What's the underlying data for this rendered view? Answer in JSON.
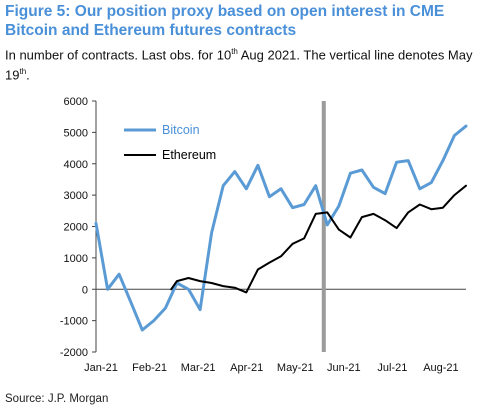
{
  "chart_data": {
    "type": "line",
    "title_prefix": "Figure 5: ",
    "title": "Our position proxy based on open interest in CME Bitcoin and Ethereum futures contracts",
    "subtitle_a": "In number of contracts. Last obs. for 10",
    "subtitle_sup_a": "th",
    "subtitle_b": " Aug 2021. The vertical line denotes May 19",
    "subtitle_sup_b": "th",
    "subtitle_c": ".",
    "source": "Source: J.P. Morgan",
    "x_tick_labels": [
      "Jan-21",
      "Feb-21",
      "Mar-21",
      "Apr-21",
      "May-21",
      "Jun-21",
      "Jul-21",
      "Aug-21"
    ],
    "ylim": [
      -2000,
      6000
    ],
    "y_ticks": [
      -2000,
      -1000,
      0,
      1000,
      2000,
      3000,
      4000,
      5000,
      6000
    ],
    "vertical_line_x": 19.7,
    "series": [
      {
        "name": "Bitcoin",
        "color": "#5b9bd5",
        "x": [
          0,
          1,
          2,
          3,
          4,
          5,
          6,
          7,
          8,
          9,
          10,
          11,
          12,
          13,
          14,
          15,
          16,
          17,
          18,
          19,
          20,
          21,
          22,
          23,
          24,
          25,
          26,
          27,
          28,
          29,
          30,
          31,
          32
        ],
        "values": [
          2100,
          0,
          480,
          -400,
          -1300,
          -1000,
          -600,
          200,
          0,
          -650,
          1800,
          3300,
          3750,
          3200,
          3950,
          2950,
          3200,
          2600,
          2700,
          3300,
          2050,
          2650,
          3700,
          3800,
          3250,
          3050,
          4050,
          4100,
          3200,
          3400,
          4100,
          4900,
          5200
        ]
      },
      {
        "name": "Ethereum",
        "color": "#000000",
        "x": [
          6.5,
          7,
          8,
          9,
          10,
          11,
          12,
          13,
          14,
          15,
          16,
          17,
          18,
          19,
          20,
          21,
          22,
          23,
          24,
          25,
          26,
          27,
          28,
          29,
          30,
          31,
          32
        ],
        "values": [
          0,
          260,
          360,
          260,
          200,
          100,
          50,
          -100,
          630,
          850,
          1050,
          1450,
          1620,
          2400,
          2450,
          1900,
          1650,
          2300,
          2400,
          2200,
          1950,
          2450,
          2700,
          2550,
          2600,
          3000,
          3300
        ]
      }
    ]
  }
}
